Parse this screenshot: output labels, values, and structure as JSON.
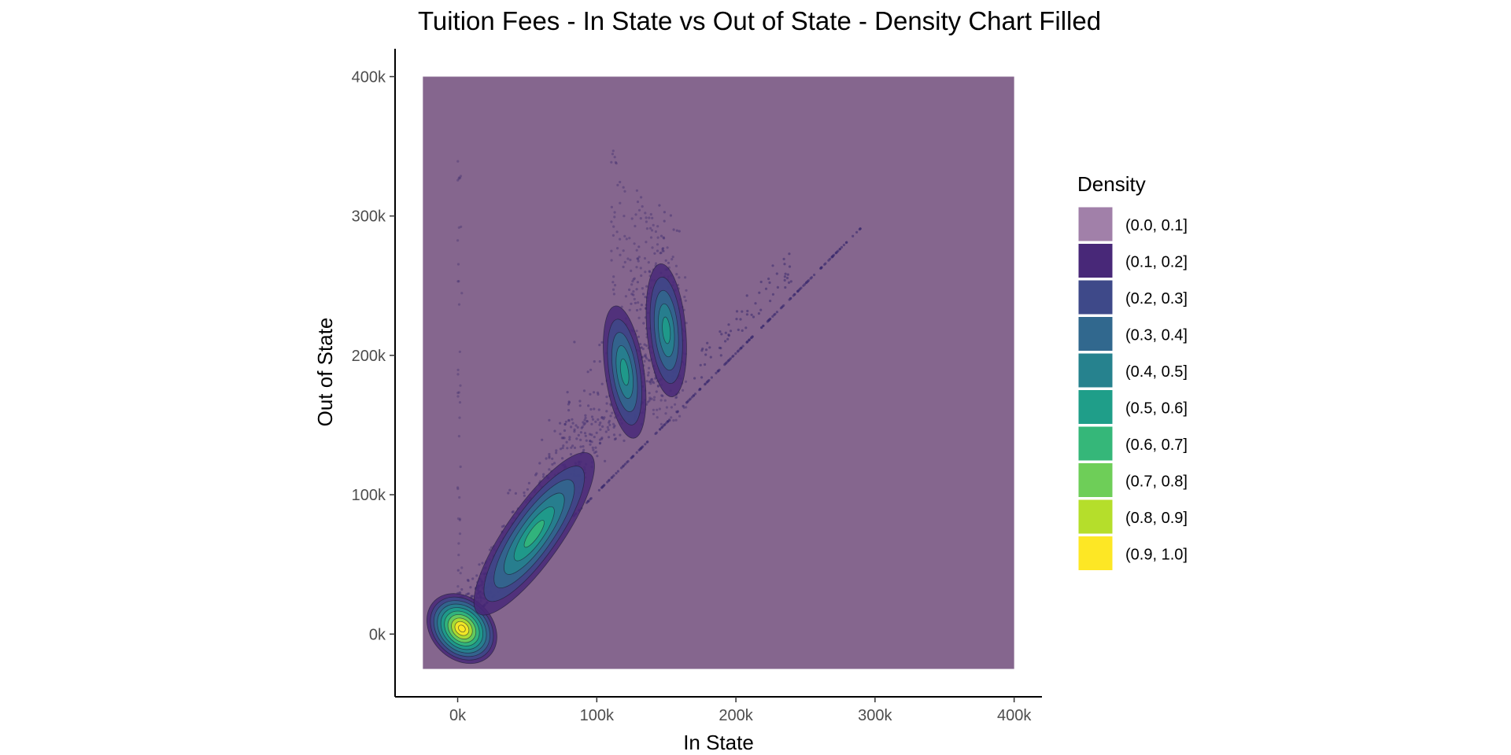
{
  "chart_data": {
    "type": "heatmap",
    "title": "Tuition Fees - In State vs Out of State - Density Chart Filled",
    "xlabel": "In State",
    "ylabel": "Out of State",
    "xlim": [
      -45000,
      420000
    ],
    "ylim": [
      -45000,
      420000
    ],
    "x_ticks": [
      0,
      100000,
      200000,
      300000,
      400000
    ],
    "x_tick_labels": [
      "0k",
      "100k",
      "200k",
      "300k",
      "400k"
    ],
    "y_ticks": [
      0,
      100000,
      200000,
      300000,
      400000
    ],
    "y_tick_labels": [
      "0k",
      "100k",
      "200k",
      "300k",
      "400k"
    ],
    "density_region": {
      "x_range": [
        -25000,
        400000
      ],
      "y_range": [
        -25000,
        400000
      ]
    },
    "grid": false,
    "legend": {
      "title": "Density",
      "placement": "right",
      "entries": [
        {
          "label": "(0.0, 0.1]",
          "color": "#44015480"
        },
        {
          "label": "(0.1, 0.2]",
          "color": "#482878"
        },
        {
          "label": "(0.2, 0.3]",
          "color": "#3e4989"
        },
        {
          "label": "(0.3, 0.4]",
          "color": "#31688e"
        },
        {
          "label": "(0.4, 0.5]",
          "color": "#26828e"
        },
        {
          "label": "(0.5, 0.6]",
          "color": "#1f9e89"
        },
        {
          "label": "(0.6, 0.7]",
          "color": "#35b779"
        },
        {
          "label": "(0.7, 0.8]",
          "color": "#6ece58"
        },
        {
          "label": "(0.8, 0.9]",
          "color": "#b5de2b"
        },
        {
          "label": "(0.9, 1.0]",
          "color": "#fde725"
        }
      ]
    },
    "density_peaks": [
      {
        "x": 3000,
        "y": 4000,
        "level": 0.95
      },
      {
        "x": 55000,
        "y": 72000,
        "level": 0.6
      },
      {
        "x": 120000,
        "y": 188000,
        "level": 0.45
      },
      {
        "x": 150000,
        "y": 218000,
        "level": 0.45
      }
    ],
    "colors": {
      "background_fill": "#85668e",
      "points": "#3b2a6e",
      "axis": "#000000"
    }
  }
}
